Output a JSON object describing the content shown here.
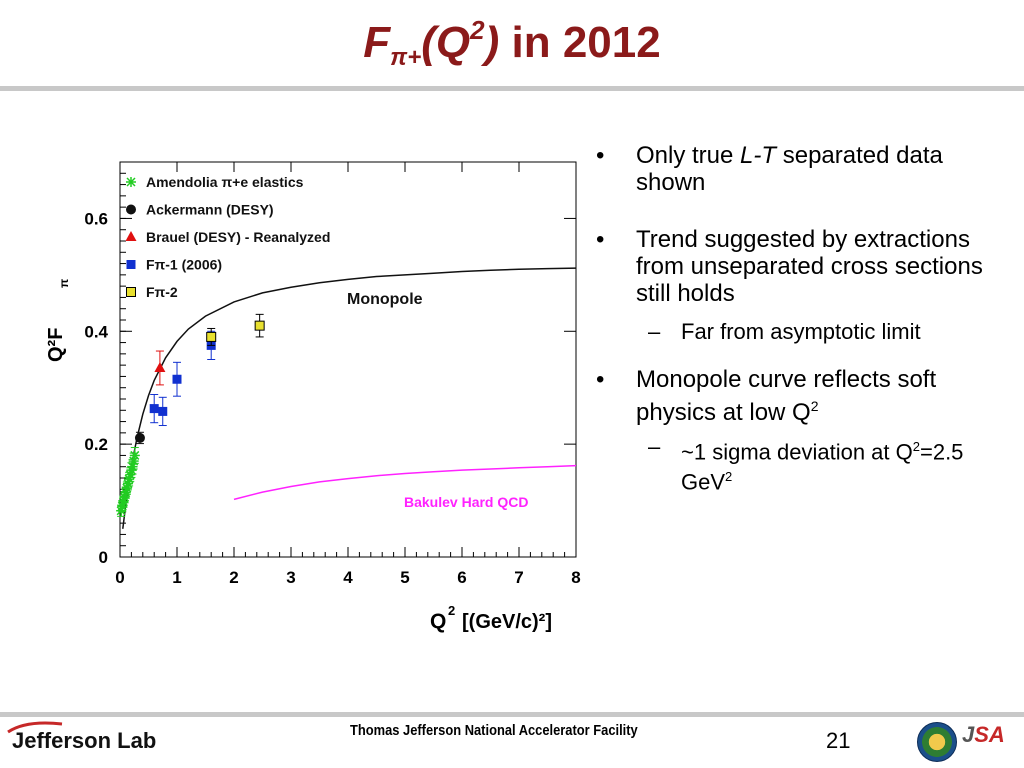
{
  "slide": {
    "title_F": "F",
    "title_sub": "π+",
    "title_open": "(Q",
    "title_sup": "2",
    "title_close": ")",
    "title_rest": " in 2012",
    "bullets": [
      {
        "pre": "Only true ",
        "it": "L-T",
        "post": " separated data shown"
      },
      {
        "pre": "Trend suggested by extractions from unseparated cross sections still holds"
      },
      {
        "pre": "Monopole curve reflects soft physics at low Q",
        "sup": "2"
      }
    ],
    "sub_bullets": [
      {
        "text": "Far from asymptotic limit"
      },
      {
        "pre": "~1 sigma deviation at Q",
        "sup1": "2",
        "mid": "=2.5 GeV",
        "sup2": "2"
      }
    ],
    "bullet_glyph": "•",
    "dash_glyph": "–",
    "footer": "Thomas Jefferson National Accelerator Facility",
    "page_number": "21",
    "logo_left": "Jefferson Lab",
    "logo_right_j": "J",
    "logo_right_sa": "SA"
  },
  "chart_data": {
    "type": "scatter",
    "ylabel": "Q²F",
    "ylabel_sub": "π",
    "xlabel": "Q",
    "xlabel_sup": "2",
    "xlabel_units": "[(GeV/c)²]",
    "xlim": [
      0,
      8
    ],
    "ylim": [
      0,
      0.7
    ],
    "xticks": [
      "0",
      "1",
      "2",
      "3",
      "4",
      "5",
      "6",
      "7",
      "8"
    ],
    "yticks": [
      "0",
      "0.2",
      "0.4",
      "0.6"
    ],
    "ytick_values": [
      0,
      0.2,
      0.4,
      0.6
    ],
    "grid": false,
    "legend_placement": "top-left",
    "series": [
      {
        "name": "Amendolia π+e elastics",
        "marker": "asterisk",
        "color": "#22cc22",
        "points": [
          [
            0.02,
            0.082
          ],
          [
            0.04,
            0.09
          ],
          [
            0.06,
            0.098
          ],
          [
            0.08,
            0.106
          ],
          [
            0.1,
            0.114
          ],
          [
            0.12,
            0.122
          ],
          [
            0.14,
            0.13
          ],
          [
            0.16,
            0.138
          ],
          [
            0.18,
            0.146
          ],
          [
            0.2,
            0.154
          ],
          [
            0.22,
            0.16
          ],
          [
            0.24,
            0.17
          ],
          [
            0.26,
            0.18
          ]
        ],
        "errors": [
          0.01,
          0.01,
          0.01,
          0.01,
          0.01,
          0.011,
          0.011,
          0.012,
          0.012,
          0.013,
          0.013,
          0.014,
          0.014
        ]
      },
      {
        "name": "Ackermann (DESY)",
        "marker": "circle",
        "color": "#111111",
        "points": [
          [
            0.35,
            0.211
          ]
        ],
        "errors": [
          0.01
        ]
      },
      {
        "name": "Brauel (DESY) - Reanalyzed",
        "marker": "triangle",
        "color": "#e01010",
        "points": [
          [
            0.7,
            0.335
          ]
        ],
        "errors": [
          0.03
        ]
      },
      {
        "name": "Fπ-1 (2006)",
        "marker": "square",
        "color": "#1030d0",
        "points": [
          [
            0.6,
            0.263
          ],
          [
            0.75,
            0.258
          ],
          [
            1.0,
            0.315
          ],
          [
            1.6,
            0.375
          ]
        ],
        "errors": [
          0.025,
          0.025,
          0.03,
          0.025
        ]
      },
      {
        "name": "Fπ-2",
        "marker": "open-square",
        "color": "#e8e030",
        "points": [
          [
            1.6,
            0.39
          ],
          [
            2.45,
            0.41
          ]
        ],
        "errors": [
          0.015,
          0.02
        ]
      }
    ],
    "curves": [
      {
        "name": "Monopole",
        "color": "#111111",
        "label": "Monopole",
        "x": [
          0.05,
          0.1,
          0.2,
          0.3,
          0.4,
          0.5,
          0.6,
          0.8,
          1.0,
          1.2,
          1.5,
          2.0,
          2.5,
          3.0,
          3.5,
          4.0,
          4.5,
          5.0,
          5.5,
          6.0,
          6.5,
          7.0,
          7.5,
          8.0
        ],
        "y": [
          0.05,
          0.092,
          0.161,
          0.212,
          0.253,
          0.286,
          0.313,
          0.353,
          0.382,
          0.404,
          0.427,
          0.452,
          0.468,
          0.478,
          0.486,
          0.492,
          0.497,
          0.5,
          0.503,
          0.506,
          0.508,
          0.51,
          0.511,
          0.512
        ]
      },
      {
        "name": "Bakulev Hard QCD",
        "color": "#ff22ff",
        "label": "Bakulev Hard QCD",
        "x": [
          2.0,
          2.5,
          3.0,
          3.5,
          4.0,
          4.5,
          5.0,
          5.5,
          6.0,
          6.5,
          7.0,
          7.5,
          8.0
        ],
        "y": [
          0.102,
          0.115,
          0.125,
          0.133,
          0.139,
          0.144,
          0.148,
          0.151,
          0.154,
          0.156,
          0.158,
          0.16,
          0.162
        ]
      }
    ]
  }
}
